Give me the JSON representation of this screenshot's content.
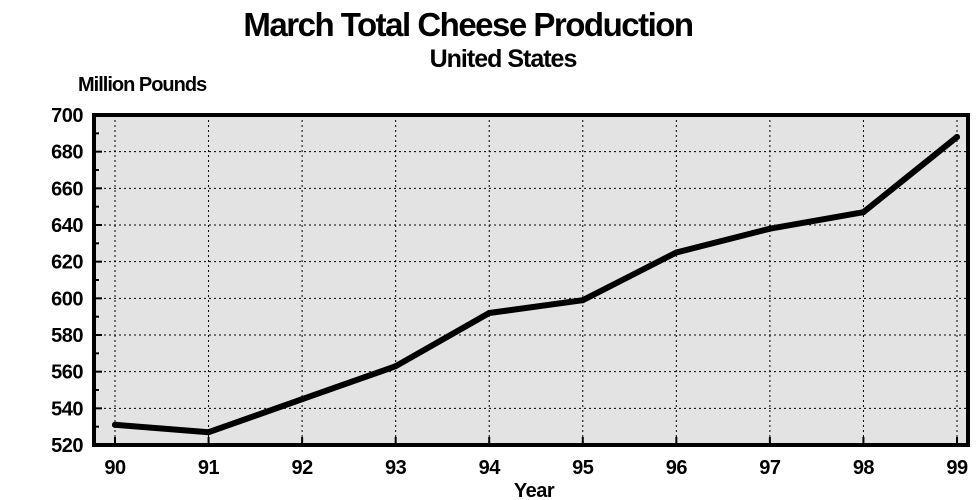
{
  "chart_data": {
    "type": "line",
    "title": "March Total Cheese Production",
    "subtitle": "United States",
    "ylabel": "Million Pounds",
    "xlabel": "Year",
    "categories": [
      "90",
      "91",
      "92",
      "93",
      "94",
      "95",
      "96",
      "97",
      "98",
      "99"
    ],
    "series": [
      {
        "values": [
          531,
          527,
          545,
          563,
          592,
          599,
          625,
          638,
          647,
          688
        ]
      }
    ],
    "ylim": [
      520,
      700
    ],
    "yticks": [
      520,
      540,
      560,
      580,
      600,
      620,
      640,
      660,
      680,
      700
    ],
    "grid": true,
    "legend": "none",
    "colors": {
      "plot_background": "#e3e3e3",
      "line": "#000000",
      "grid": "#000000"
    }
  }
}
